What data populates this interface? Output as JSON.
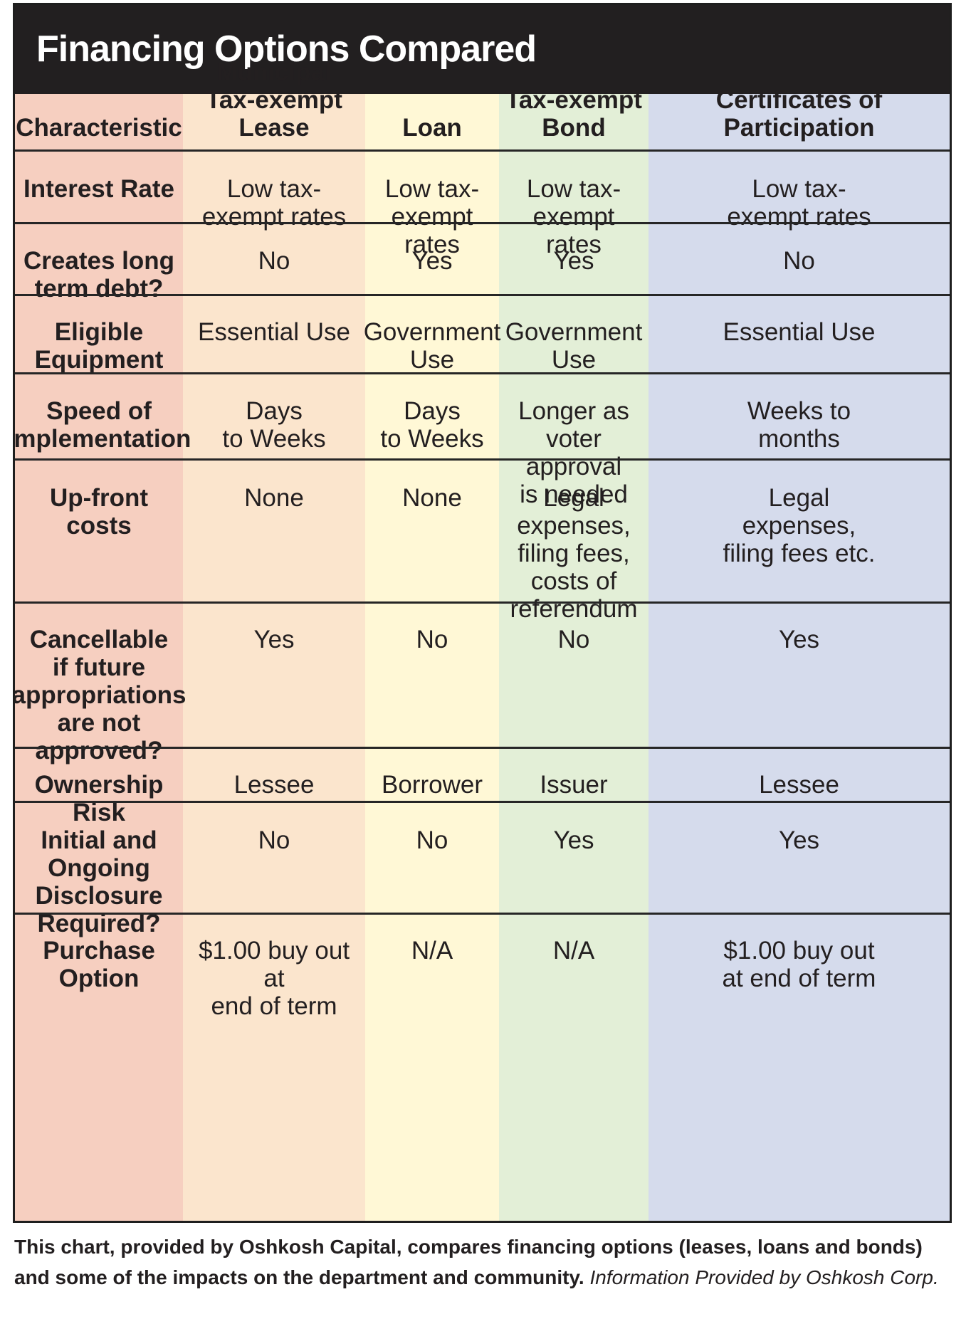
{
  "title": "Financing Options Compared",
  "colors": {
    "title_bg": "#221f20",
    "characteristic_column": "#f6cfc0",
    "lease_column": "#fbe5cd",
    "loan_column": "#fff8d6",
    "bond_column": "#e3efd7",
    "cop_column": "#d5dbec",
    "grid_lines": "#262626"
  },
  "table": {
    "headers": [
      "Characteristic",
      "Municipal\nTax-exempt Lease",
      "Loan",
      "Tax-exempt\nBond",
      "Certificates of\nParticipation"
    ],
    "rows": [
      {
        "characteristic": "Interest Rate",
        "values": [
          "Low tax-\nexempt rates",
          "Low tax-\nexempt rates",
          "Low tax-\nexempt rates",
          "Low tax-\nexempt rates"
        ]
      },
      {
        "characteristic": "Creates long\nterm debt?",
        "values": [
          "No",
          "Yes",
          "Yes",
          "No"
        ]
      },
      {
        "characteristic": "Eligible\nEquipment",
        "values": [
          "Essential Use",
          "Government\nUse",
          "Government\nUse",
          "Essential Use"
        ]
      },
      {
        "characteristic": "Speed of\nImplementation",
        "values": [
          "Days\nto Weeks",
          "Days\nto Weeks",
          "Longer as\nvoter approval\nis needed",
          "Weeks to\nmonths"
        ]
      },
      {
        "characteristic": "Up-front costs",
        "values": [
          "None",
          "None",
          "Legal\nexpenses,\nfiling fees,\ncosts of\nreferendum",
          "Legal\nexpenses,\nfiling fees etc."
        ]
      },
      {
        "characteristic": "Cancellable\nif future\nappropriations\nare not\napproved?",
        "values": [
          "Yes",
          "No",
          "No",
          "Yes"
        ]
      },
      {
        "characteristic": "Ownership Risk",
        "values": [
          "Lessee",
          "Borrower",
          "Issuer",
          "Lessee"
        ]
      },
      {
        "characteristic": "Initial and\nOngoing\nDisclosure\nRequired?",
        "values": [
          "No",
          "No",
          "Yes",
          "Yes"
        ]
      },
      {
        "characteristic": "Purchase\nOption",
        "values": [
          "$1.00 buy out at\nend of term",
          "N/A",
          "N/A",
          "$1.00 buy out\nat end of term"
        ]
      }
    ]
  },
  "caption": {
    "text": "This chart, provided by Oshkosh Capital, compares financing options (leases, loans and bonds) and some of the impacts on the department and community.",
    "credit": "Information Provided by Oshkosh Corp."
  }
}
